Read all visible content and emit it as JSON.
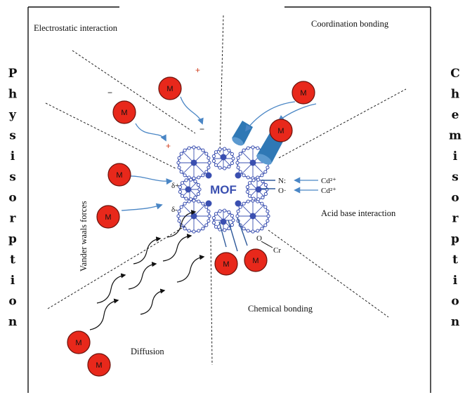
{
  "side_labels": {
    "left": [
      "P",
      "h",
      "y",
      "s",
      "i",
      "s",
      "o",
      "r",
      "p",
      "t",
      "i",
      "o",
      "n"
    ],
    "right": [
      "C",
      "h",
      "e",
      "m",
      "i",
      "s",
      "o",
      "r",
      "p",
      "t",
      "i",
      "o",
      "n"
    ]
  },
  "regions": {
    "electrostatic": "Electrostatic interaction",
    "coordination": "Coordination bonding",
    "vanderwaals": "Vander waals forces",
    "acidbase": "Acid base interaction",
    "chemical": "Chemical bonding",
    "diffusion": "Diffusion"
  },
  "center": {
    "label": "MOF"
  },
  "molecule_label": "M",
  "charges": {
    "plus1": "+",
    "plus2": "+",
    "minus1": "−",
    "minus2": "−",
    "delta_plus": "δ+",
    "delta_minus": "δ-"
  },
  "acid_base": {
    "n_label": "N:",
    "o_label": "O·",
    "cd1": "Cd²⁺",
    "cd2": "Cd²⁺"
  },
  "chem": {
    "o_label": "O",
    "cr_label": "Cr"
  },
  "colors": {
    "molecule_fill": "#e8281b",
    "mof_blue": "#3a4fb0",
    "arrow_blue": "#4a86c5",
    "coord_blue": "#2f78b5",
    "charge_red": "#d04020"
  }
}
